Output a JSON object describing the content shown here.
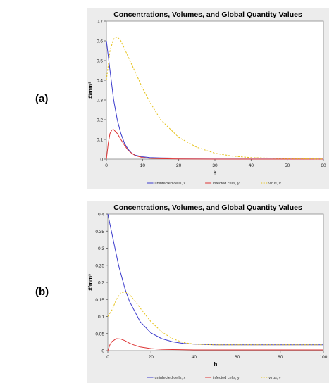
{
  "panels": [
    "(a)",
    "(b)"
  ],
  "chart_data": [
    {
      "type": "line",
      "title": "Concentrations, Volumes, and Global Quantity Values",
      "xlabel": "h",
      "ylabel": "#/mm³",
      "xlim": [
        0,
        60
      ],
      "ylim": [
        0,
        0.7
      ],
      "xticks": [
        0,
        10,
        20,
        30,
        40,
        50,
        60
      ],
      "yticks": [
        0,
        0.1,
        0.2,
        0.3,
        0.4,
        0.5,
        0.6,
        0.7
      ],
      "grid": false,
      "legend": "bottom",
      "series": [
        {
          "name": "uninfected cells, x",
          "color": "#3b3bcc",
          "dash": "solid",
          "x": [
            0,
            1,
            2,
            3,
            4,
            5,
            6,
            7,
            8,
            10,
            12,
            15,
            20,
            30,
            40,
            50,
            60
          ],
          "y": [
            0.6,
            0.45,
            0.3,
            0.2,
            0.13,
            0.08,
            0.05,
            0.03,
            0.02,
            0.012,
            0.008,
            0.006,
            0.005,
            0.005,
            0.005,
            0.005,
            0.005
          ]
        },
        {
          "name": "infected cells, y",
          "color": "#dd3333",
          "dash": "solid",
          "x": [
            0,
            0.5,
            1,
            1.5,
            2,
            3,
            4,
            5,
            6,
            7,
            8,
            10,
            12,
            15,
            20,
            30,
            60
          ],
          "y": [
            0,
            0.08,
            0.13,
            0.148,
            0.15,
            0.13,
            0.1,
            0.07,
            0.045,
            0.03,
            0.018,
            0.008,
            0.004,
            0.002,
            0.001,
            0,
            0
          ]
        },
        {
          "name": "virus, v",
          "color": "#e6c21a",
          "dash": "dashed",
          "x": [
            0,
            1,
            2,
            3,
            4,
            5,
            6,
            8,
            10,
            12,
            15,
            20,
            25,
            30,
            35,
            40,
            50,
            60
          ],
          "y": [
            0.4,
            0.55,
            0.61,
            0.62,
            0.6,
            0.56,
            0.52,
            0.44,
            0.36,
            0.29,
            0.2,
            0.11,
            0.06,
            0.03,
            0.015,
            0.008,
            0.003,
            0.001
          ]
        }
      ]
    },
    {
      "type": "line",
      "title": "Concentrations, Volumes, and Global Quantity Values",
      "xlabel": "h",
      "ylabel": "#/mm³",
      "xlim": [
        0,
        100
      ],
      "ylim": [
        0,
        0.4
      ],
      "xticks": [
        0,
        20,
        40,
        60,
        80,
        100
      ],
      "yticks": [
        0,
        0.05,
        0.1,
        0.15,
        0.2,
        0.25,
        0.3,
        0.35,
        0.4
      ],
      "grid": false,
      "legend": "bottom",
      "series": [
        {
          "name": "uninfected cells, x",
          "color": "#3b3bcc",
          "dash": "solid",
          "x": [
            0,
            2,
            5,
            8,
            10,
            15,
            20,
            25,
            30,
            35,
            40,
            50,
            60,
            80,
            100
          ],
          "y": [
            0.4,
            0.34,
            0.25,
            0.18,
            0.145,
            0.085,
            0.052,
            0.035,
            0.026,
            0.021,
            0.019,
            0.017,
            0.017,
            0.017,
            0.017
          ]
        },
        {
          "name": "infected cells, y",
          "color": "#dd3333",
          "dash": "solid",
          "x": [
            0,
            1,
            2,
            4,
            6,
            8,
            10,
            12,
            15,
            20,
            25,
            30,
            40,
            60,
            80,
            100
          ],
          "y": [
            0,
            0.018,
            0.027,
            0.035,
            0.034,
            0.029,
            0.022,
            0.017,
            0.011,
            0.006,
            0.004,
            0.003,
            0.002,
            0.002,
            0.002,
            0.002
          ]
        },
        {
          "name": "virus, v",
          "color": "#e6c21a",
          "dash": "dashed",
          "x": [
            0,
            2,
            4,
            6,
            8,
            10,
            12,
            15,
            20,
            25,
            30,
            35,
            40,
            50,
            60,
            80,
            100
          ],
          "y": [
            0.1,
            0.12,
            0.15,
            0.17,
            0.172,
            0.165,
            0.15,
            0.125,
            0.085,
            0.055,
            0.035,
            0.024,
            0.019,
            0.017,
            0.017,
            0.017,
            0.017
          ]
        }
      ]
    }
  ]
}
